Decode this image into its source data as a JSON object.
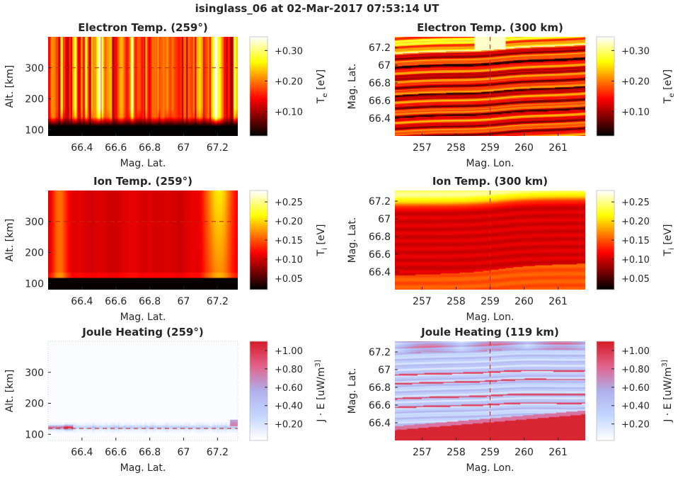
{
  "figure": {
    "title": "isinglass_06 at 02-Mar-2017 07:53:14 UT"
  },
  "chart_data": [
    {
      "type": "heatmap",
      "title": "Electron Temp. (259°)",
      "xlabel": "Mag. Lat.",
      "ylabel": "Alt. [km]",
      "xlim": [
        66.2,
        67.32
      ],
      "ylim": [
        80,
        400
      ],
      "xticks": [
        "66.4",
        "66.6",
        "66.8",
        "67",
        "67.2"
      ],
      "xtick_values": [
        66.4,
        66.6,
        66.8,
        67.0,
        67.2
      ],
      "yticks": [
        "100",
        "200",
        "300"
      ],
      "ytick_values": [
        100,
        200,
        300
      ],
      "colormap": "hot",
      "colorbar": {
        "label": "T_e [eV]",
        "range": [
          0.02,
          0.345
        ],
        "ticks": [
          "+0.10",
          "+0.20",
          "+0.30"
        ],
        "tick_values": [
          0.1,
          0.2,
          0.3
        ]
      },
      "reference_line": {
        "axis": "y",
        "value": 300,
        "style": "dashed",
        "color": "#cc2200"
      },
      "field_description": "hot below 120 km is black (~0.02 eV); upper altitudes ~0.12-0.22 eV with vertical bright streaks, maximum ~0.33 eV near 67.25"
    },
    {
      "type": "heatmap",
      "title": "Electron Temp. (300 km)",
      "xlabel": "Mag. Lon.",
      "ylabel": "Mag. Lat.",
      "xlim": [
        256.2,
        261.8
      ],
      "ylim": [
        66.2,
        67.32
      ],
      "xticks": [
        "257",
        "258",
        "259",
        "260",
        "261"
      ],
      "xtick_values": [
        257,
        258,
        259,
        260,
        261
      ],
      "yticks": [
        "66.4",
        "66.6",
        "66.8",
        "67",
        "67.2"
      ],
      "ytick_values": [
        66.4,
        66.6,
        66.8,
        67.0,
        67.2
      ],
      "colormap": "hot",
      "colorbar": {
        "label": "T_e [eV]",
        "range": [
          0.02,
          0.345
        ],
        "ticks": [
          "+0.10",
          "+0.20",
          "+0.30"
        ],
        "tick_values": [
          0.1,
          0.2,
          0.3
        ]
      },
      "reference_line": {
        "axis": "x",
        "value": 259,
        "style": "dashed",
        "color": "#cc2200"
      }
    },
    {
      "type": "heatmap",
      "title": "Ion Temp. (259°)",
      "xlabel": "Mag. Lat.",
      "ylabel": "Alt. [km]",
      "xlim": [
        66.2,
        67.32
      ],
      "ylim": [
        80,
        400
      ],
      "xticks": [
        "66.4",
        "66.6",
        "66.8",
        "67",
        "67.2"
      ],
      "xtick_values": [
        66.4,
        66.6,
        66.8,
        67.0,
        67.2
      ],
      "yticks": [
        "100",
        "200",
        "300"
      ],
      "ytick_values": [
        100,
        200,
        300
      ],
      "colormap": "hot",
      "colorbar": {
        "label": "T_i [eV]",
        "range": [
          0.02,
          0.28
        ],
        "ticks": [
          "+0.05",
          "+0.10",
          "+0.15",
          "+0.20",
          "+0.25"
        ],
        "tick_values": [
          0.05,
          0.1,
          0.15,
          0.2,
          0.25
        ]
      },
      "reference_line": {
        "axis": "y",
        "value": 300,
        "style": "dashed",
        "color": "#cc2200"
      }
    },
    {
      "type": "heatmap",
      "title": "Ion Temp. (300 km)",
      "xlabel": "Mag. Lon.",
      "ylabel": "Mag. Lat.",
      "xlim": [
        256.2,
        261.8
      ],
      "ylim": [
        66.2,
        67.32
      ],
      "xticks": [
        "257",
        "258",
        "259",
        "260",
        "261"
      ],
      "xtick_values": [
        257,
        258,
        259,
        260,
        261
      ],
      "yticks": [
        "66.4",
        "66.6",
        "66.8",
        "67",
        "67.2"
      ],
      "ytick_values": [
        66.4,
        66.6,
        66.8,
        67.0,
        67.2
      ],
      "colormap": "hot",
      "colorbar": {
        "label": "T_i [eV]",
        "range": [
          0.02,
          0.28
        ],
        "ticks": [
          "+0.05",
          "+0.10",
          "+0.15",
          "+0.20",
          "+0.25"
        ],
        "tick_values": [
          0.05,
          0.1,
          0.15,
          0.2,
          0.25
        ]
      },
      "reference_line": {
        "axis": "x",
        "value": 259,
        "style": "dashed",
        "color": "#cc2200"
      }
    },
    {
      "type": "heatmap",
      "title": "Joule Heating (259°)",
      "xlabel": "Mag. Lat.",
      "ylabel": "Alt. [km]",
      "xlim": [
        66.2,
        67.32
      ],
      "ylim": [
        80,
        400
      ],
      "xticks": [
        "66.4",
        "66.6",
        "66.8",
        "67",
        "67.2"
      ],
      "xtick_values": [
        66.4,
        66.6,
        66.8,
        67.0,
        67.2
      ],
      "yticks": [
        "100",
        "200",
        "300"
      ],
      "ytick_values": [
        100,
        200,
        300
      ],
      "colormap": "white-blue-red",
      "colorbar": {
        "label": "J · E [uW/m^3]",
        "range": [
          0.02,
          1.1
        ],
        "ticks": [
          "+0.20",
          "+0.40",
          "+0.60",
          "+0.80",
          "+1.00"
        ],
        "tick_values": [
          0.2,
          0.4,
          0.6,
          0.8,
          1.0
        ]
      },
      "reference_line": {
        "axis": "y",
        "value": 119,
        "style": "dashed",
        "color": "#cc2200"
      }
    },
    {
      "type": "heatmap",
      "title": "Joule Heating (119 km)",
      "xlabel": "Mag. Lon.",
      "ylabel": "Mag. Lat.",
      "xlim": [
        256.2,
        261.8
      ],
      "ylim": [
        66.2,
        67.32
      ],
      "xticks": [
        "257",
        "258",
        "259",
        "260",
        "261"
      ],
      "xtick_values": [
        257,
        258,
        259,
        260,
        261
      ],
      "yticks": [
        "66.4",
        "66.6",
        "66.8",
        "67",
        "67.2"
      ],
      "ytick_values": [
        66.4,
        66.6,
        66.8,
        67.0,
        67.2
      ],
      "colormap": "white-blue-red",
      "colorbar": {
        "label": "J · E [uW/m^3]",
        "range": [
          0.02,
          1.1
        ],
        "ticks": [
          "+0.20",
          "+0.40",
          "+0.60",
          "+0.80",
          "+1.00"
        ],
        "tick_values": [
          0.2,
          0.4,
          0.6,
          0.8,
          1.0
        ]
      },
      "reference_line": {
        "axis": "x",
        "value": 259,
        "style": "dashed",
        "color": "#cc2200"
      }
    }
  ]
}
